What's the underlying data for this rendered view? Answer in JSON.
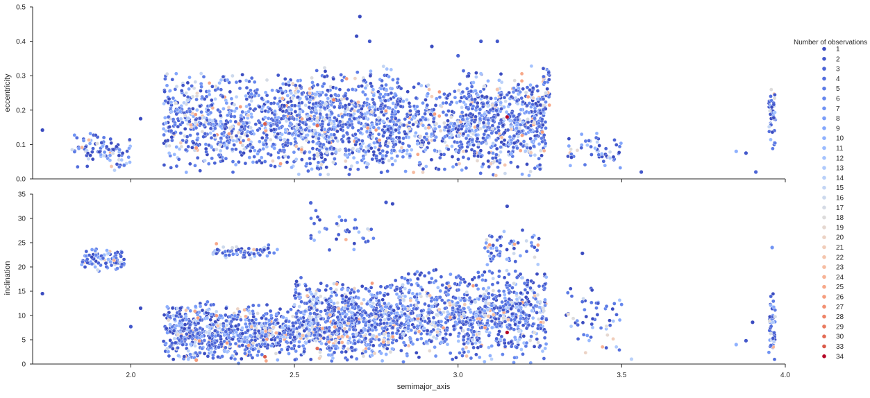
{
  "chart_data": [
    {
      "type": "scatter",
      "panel": "top",
      "xlabel": "",
      "ylabel": "eccentricity",
      "xlim": [
        1.7,
        4.0
      ],
      "ylim": [
        0.0,
        0.5
      ],
      "xticks": [
        2.0,
        2.5,
        3.0,
        3.5,
        4.0
      ],
      "xtick_labels_visible": false,
      "yticks": [
        "0.0",
        "0.1",
        "0.2",
        "0.3",
        "0.4",
        "0.5"
      ],
      "grid": false,
      "clusters": [
        {
          "x": [
            1.82,
            2.0
          ],
          "y": [
            0.02,
            0.14
          ],
          "n": 90
        },
        {
          "x": [
            2.1,
            2.5
          ],
          "y": [
            0.01,
            0.32
          ],
          "n": 700
        },
        {
          "x": [
            2.5,
            2.82
          ],
          "y": [
            0.0,
            0.33
          ],
          "n": 800
        },
        {
          "x": [
            2.82,
            3.0
          ],
          "y": [
            0.0,
            0.3
          ],
          "n": 260
        },
        {
          "x": [
            3.0,
            3.27
          ],
          "y": [
            0.0,
            0.33
          ],
          "n": 650
        },
        {
          "x": [
            3.26,
            3.28
          ],
          "y": [
            0.2,
            0.34
          ],
          "n": 25
        },
        {
          "x": [
            3.33,
            3.5
          ],
          "y": [
            0.02,
            0.14
          ],
          "n": 55
        },
        {
          "x": [
            3.95,
            3.97
          ],
          "y": [
            0.08,
            0.27
          ],
          "n": 45
        }
      ],
      "highlight_points": [
        {
          "x": 1.73,
          "y": 0.142,
          "obs": 1
        },
        {
          "x": 2.03,
          "y": 0.175,
          "obs": 1
        },
        {
          "x": 2.7,
          "y": 0.472,
          "obs": 1
        },
        {
          "x": 2.69,
          "y": 0.415,
          "obs": 1
        },
        {
          "x": 2.73,
          "y": 0.4,
          "obs": 2
        },
        {
          "x": 3.07,
          "y": 0.4,
          "obs": 2
        },
        {
          "x": 3.12,
          "y": 0.4,
          "obs": 2
        },
        {
          "x": 2.92,
          "y": 0.385,
          "obs": 1
        },
        {
          "x": 3.0,
          "y": 0.358,
          "obs": 3
        },
        {
          "x": 2.57,
          "y": 0.155,
          "obs": 30
        },
        {
          "x": 2.41,
          "y": 0.16,
          "obs": 33
        },
        {
          "x": 3.15,
          "y": 0.18,
          "obs": 34
        },
        {
          "x": 2.62,
          "y": 0.23,
          "obs": 28
        },
        {
          "x": 2.2,
          "y": 0.09,
          "obs": 26
        },
        {
          "x": 2.33,
          "y": 0.16,
          "obs": 24
        },
        {
          "x": 3.12,
          "y": 0.26,
          "obs": 22
        },
        {
          "x": 3.56,
          "y": 0.02,
          "obs": 2
        },
        {
          "x": 3.85,
          "y": 0.08,
          "obs": 10
        },
        {
          "x": 3.88,
          "y": 0.075,
          "obs": 2
        },
        {
          "x": 3.91,
          "y": 0.02,
          "obs": 3
        }
      ]
    },
    {
      "type": "scatter",
      "panel": "bottom",
      "xlabel": "semimajor_axis",
      "ylabel": "inclination",
      "xlim": [
        1.7,
        4.0
      ],
      "ylim": [
        0,
        35
      ],
      "xticks": [
        "2.0",
        "2.5",
        "3.0",
        "3.5",
        "4.0"
      ],
      "yticks": [
        "0",
        "5",
        "10",
        "15",
        "20",
        "25",
        "30",
        "35"
      ],
      "grid": false,
      "clusters": [
        {
          "x": [
            1.85,
            1.98
          ],
          "y": [
            19,
            24
          ],
          "n": 90
        },
        {
          "x": [
            2.1,
            2.5
          ],
          "y": [
            0,
            13
          ],
          "n": 700
        },
        {
          "x": [
            2.25,
            2.45
          ],
          "y": [
            21.5,
            25
          ],
          "n": 60
        },
        {
          "x": [
            2.5,
            2.82
          ],
          "y": [
            0,
            18
          ],
          "n": 800
        },
        {
          "x": [
            2.55,
            2.75
          ],
          "y": [
            21,
            33
          ],
          "n": 40
        },
        {
          "x": [
            2.82,
            3.27
          ],
          "y": [
            0,
            20
          ],
          "n": 900
        },
        {
          "x": [
            3.08,
            3.25
          ],
          "y": [
            20,
            28.5
          ],
          "n": 60
        },
        {
          "x": [
            3.33,
            3.5
          ],
          "y": [
            1,
            18
          ],
          "n": 55
        },
        {
          "x": [
            3.95,
            3.97
          ],
          "y": [
            0,
            15
          ],
          "n": 45
        }
      ],
      "highlight_points": [
        {
          "x": 1.73,
          "y": 14.5,
          "obs": 1
        },
        {
          "x": 2.03,
          "y": 11.5,
          "obs": 1
        },
        {
          "x": 2.0,
          "y": 7.7,
          "obs": 2
        },
        {
          "x": 2.55,
          "y": 33.2,
          "obs": 3
        },
        {
          "x": 2.78,
          "y": 33.3,
          "obs": 2
        },
        {
          "x": 2.8,
          "y": 33.0,
          "obs": 1
        },
        {
          "x": 3.15,
          "y": 32.5,
          "obs": 1
        },
        {
          "x": 2.57,
          "y": 3.2,
          "obs": 30
        },
        {
          "x": 2.41,
          "y": 1.5,
          "obs": 33
        },
        {
          "x": 3.15,
          "y": 6.5,
          "obs": 34
        },
        {
          "x": 2.2,
          "y": 0.8,
          "obs": 26
        },
        {
          "x": 3.96,
          "y": 24.0,
          "obs": 7
        },
        {
          "x": 3.85,
          "y": 4.0,
          "obs": 10
        },
        {
          "x": 3.88,
          "y": 4.8,
          "obs": 2
        },
        {
          "x": 3.9,
          "y": 8.6,
          "obs": 1
        },
        {
          "x": 3.38,
          "y": 22.8,
          "obs": 1
        },
        {
          "x": 3.53,
          "y": 1.0,
          "obs": 14
        }
      ]
    }
  ],
  "legend": {
    "title": "Number of observations",
    "placement": "right",
    "entries": [
      {
        "label": "1",
        "color": "#3b4cc0"
      },
      {
        "label": "2",
        "color": "#4358cb"
      },
      {
        "label": "3",
        "color": "#4b64d5"
      },
      {
        "label": "4",
        "color": "#536edd"
      },
      {
        "label": "5",
        "color": "#5c7be5"
      },
      {
        "label": "6",
        "color": "#6687ed"
      },
      {
        "label": "7",
        "color": "#7093f3"
      },
      {
        "label": "8",
        "color": "#7a9df8"
      },
      {
        "label": "9",
        "color": "#84a7fc"
      },
      {
        "label": "10",
        "color": "#8fb1fe"
      },
      {
        "label": "11",
        "color": "#9abbff"
      },
      {
        "label": "12",
        "color": "#a5c3fe"
      },
      {
        "label": "13",
        "color": "#afcafc"
      },
      {
        "label": "14",
        "color": "#b9d0f9"
      },
      {
        "label": "15",
        "color": "#c3d5f4"
      },
      {
        "label": "16",
        "color": "#ccd9ed"
      },
      {
        "label": "17",
        "color": "#d5dbe5"
      },
      {
        "label": "18",
        "color": "#dddcdc"
      },
      {
        "label": "19",
        "color": "#e5d8d1"
      },
      {
        "label": "20",
        "color": "#ecd3c5"
      },
      {
        "label": "21",
        "color": "#f1cdba"
      },
      {
        "label": "22",
        "color": "#f4c5ad"
      },
      {
        "label": "23",
        "color": "#f6bda2"
      },
      {
        "label": "24",
        "color": "#f7b396"
      },
      {
        "label": "25",
        "color": "#f7a889"
      },
      {
        "label": "26",
        "color": "#f59d7e"
      },
      {
        "label": "27",
        "color": "#f29072"
      },
      {
        "label": "28",
        "color": "#ee8468"
      },
      {
        "label": "29",
        "color": "#e97a5f"
      },
      {
        "label": "30",
        "color": "#e36c55"
      },
      {
        "label": "33",
        "color": "#da5a49"
      },
      {
        "label": "34",
        "color": "#b40426"
      }
    ]
  }
}
